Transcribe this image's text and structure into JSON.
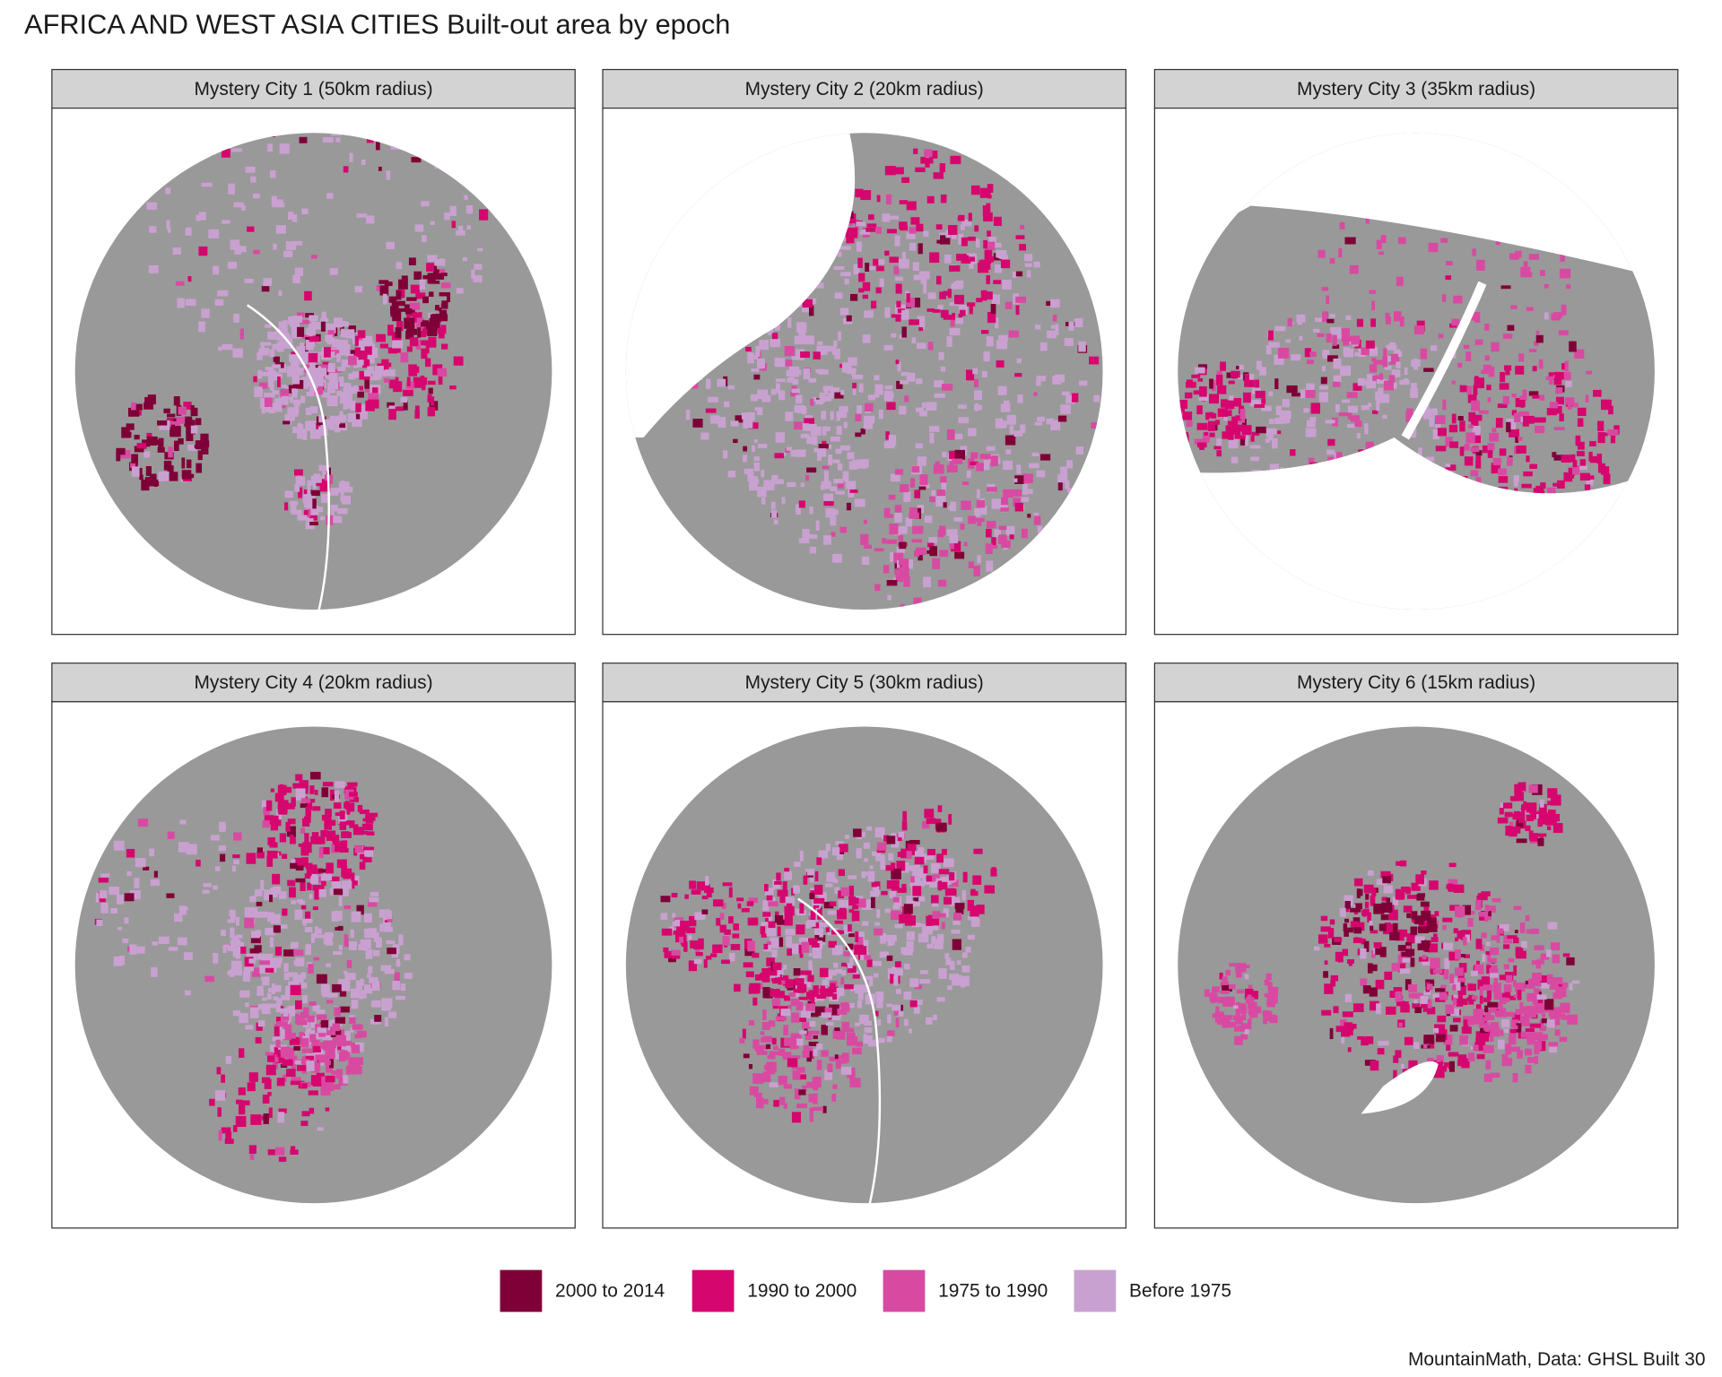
{
  "title": "AFRICA AND WEST ASIA CITIES Built-out area by epoch",
  "panels": [
    {
      "label": "Mystery City 1 (50km radius)"
    },
    {
      "label": "Mystery City 2 (20km radius)"
    },
    {
      "label": "Mystery City 3 (35km radius)"
    },
    {
      "label": "Mystery City 4 (20km radius)"
    },
    {
      "label": "Mystery City 5 (30km radius)"
    },
    {
      "label": "Mystery City 6 (15km radius)"
    }
  ],
  "legend": [
    {
      "label": "2000 to 2014",
      "color": "#7f0037"
    },
    {
      "label": "1990 to 2000",
      "color": "#d6066f"
    },
    {
      "label": "1975 to 1990",
      "color": "#d84aa2"
    },
    {
      "label": "Before 1975",
      "color": "#c9a1d0"
    }
  ],
  "caption": "MountainMath, Data: GHSL Built 30"
}
